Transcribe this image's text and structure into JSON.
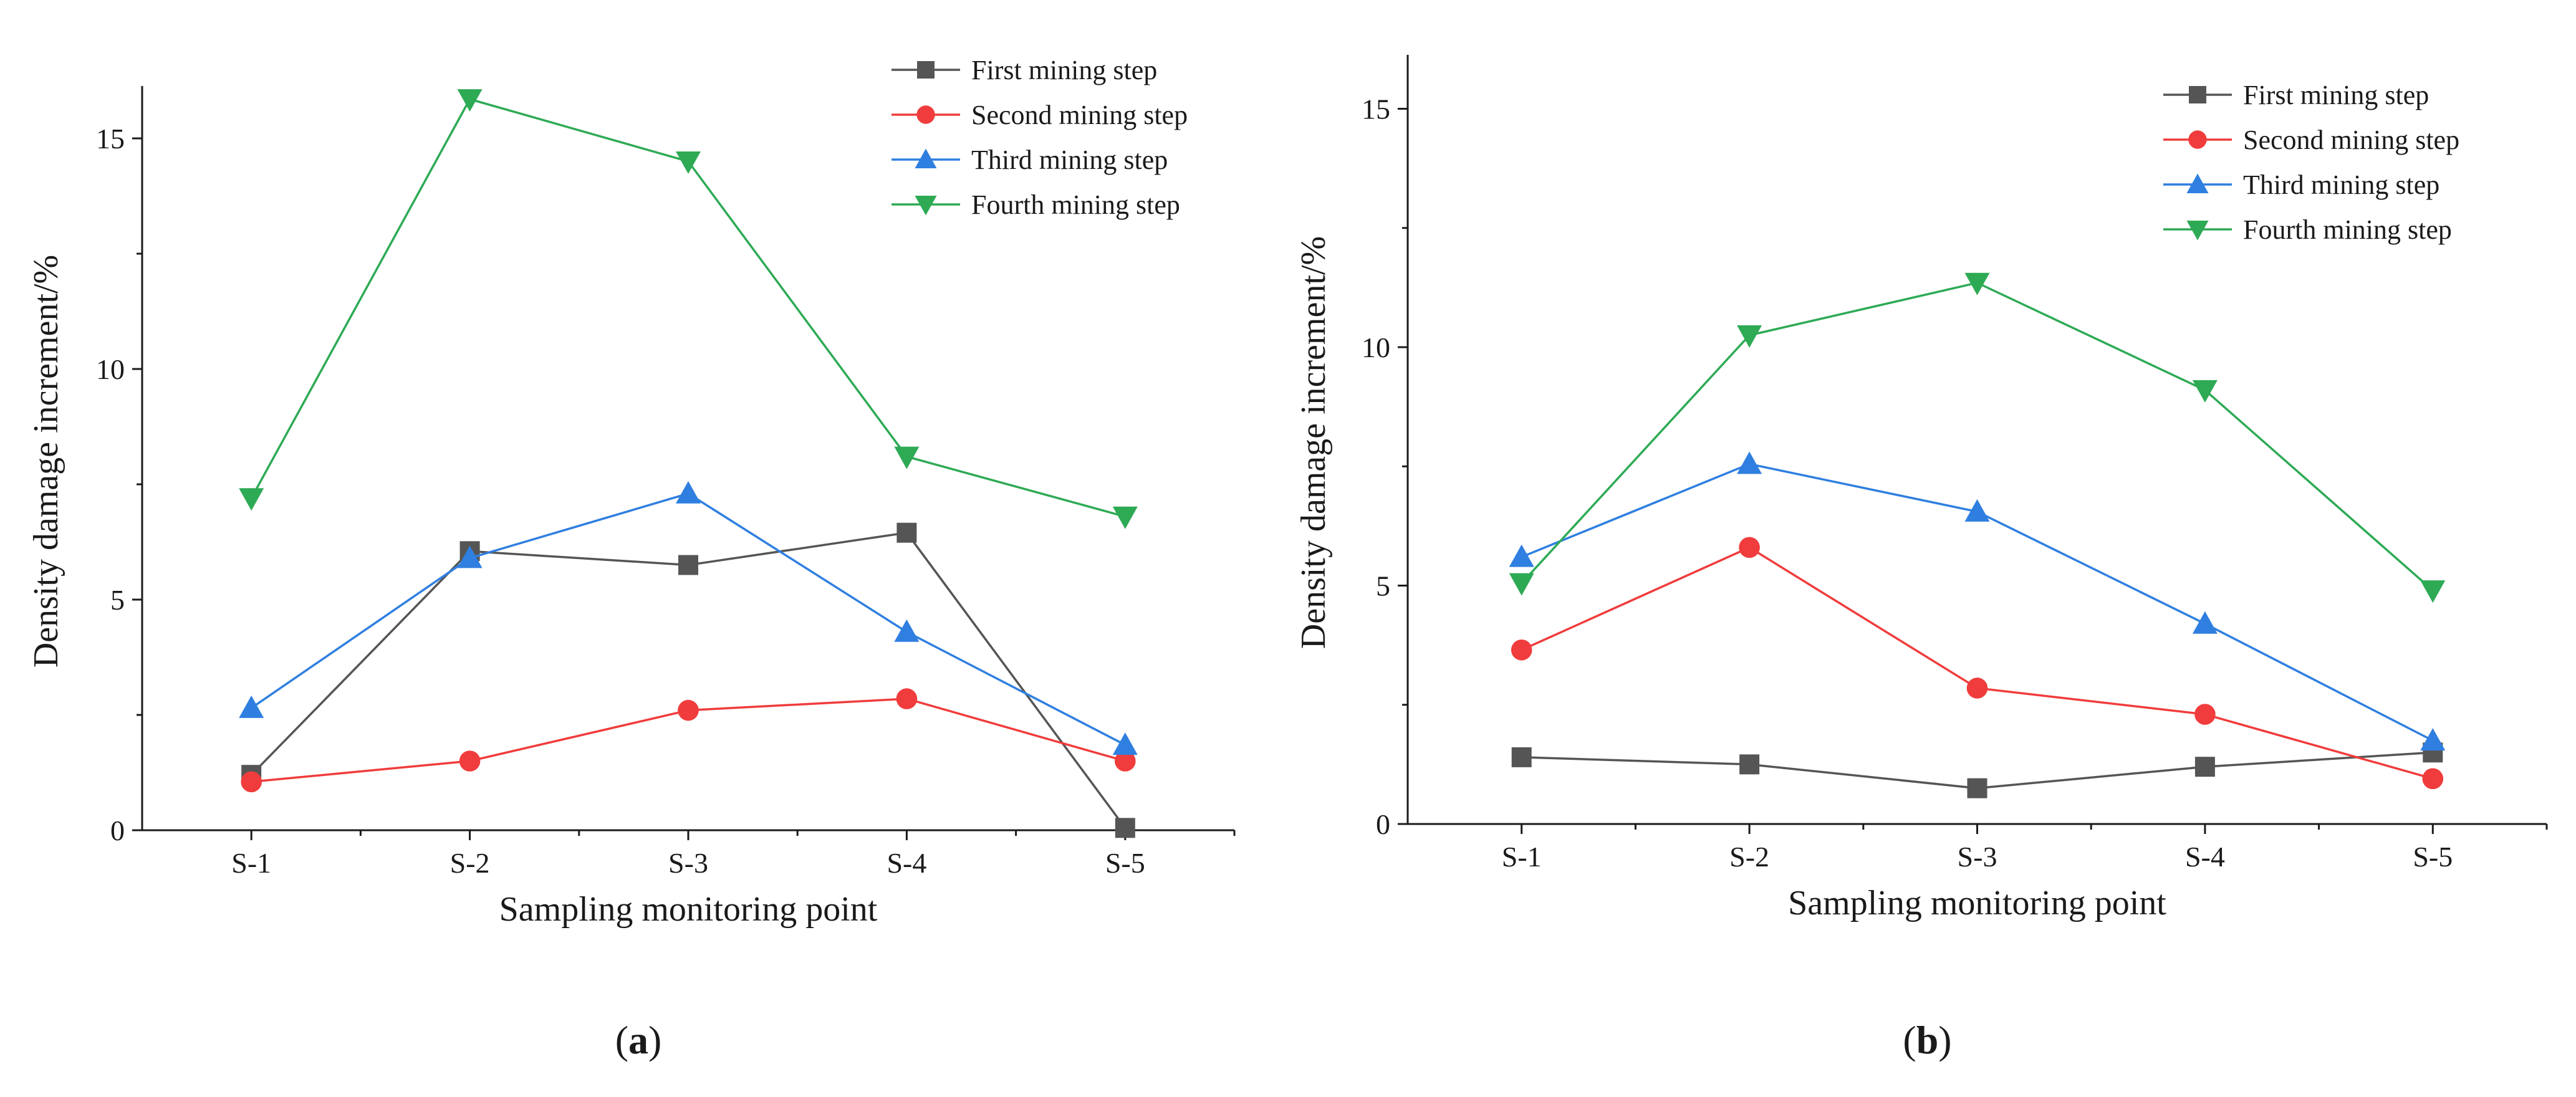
{
  "chart_data": [
    {
      "type": "line",
      "panel_label": "a",
      "xlabel": "Sampling monitoring point",
      "ylabel": "Density damage increment/%",
      "categories": [
        "S-1",
        "S-2",
        "S-3",
        "S-4",
        "S-5"
      ],
      "ylim": [
        0,
        16
      ],
      "yticks": [
        0,
        5,
        10,
        15
      ],
      "legend_position": "top-right",
      "series": [
        {
          "name": "First mining step",
          "color": "#555555",
          "marker": "square",
          "values": [
            1.2,
            6.05,
            5.75,
            6.45,
            0.05
          ]
        },
        {
          "name": "Second mining step",
          "color": "#f03c3c",
          "marker": "circle",
          "values": [
            1.05,
            1.5,
            2.6,
            2.85,
            1.5
          ]
        },
        {
          "name": "Third mining step",
          "color": "#2f7fe0",
          "marker": "triangle-up",
          "values": [
            2.65,
            5.9,
            7.3,
            4.3,
            1.85
          ]
        },
        {
          "name": "Fourth mining step",
          "color": "#2eaa55",
          "marker": "triangle-down",
          "values": [
            7.2,
            15.85,
            14.5,
            8.1,
            6.8
          ]
        }
      ]
    },
    {
      "type": "line",
      "panel_label": "b",
      "xlabel": "Sampling monitoring point",
      "ylabel": "Density damage increment/%",
      "categories": [
        "S-1",
        "S-2",
        "S-3",
        "S-4",
        "S-5"
      ],
      "ylim": [
        0,
        16
      ],
      "yticks": [
        0,
        5,
        10,
        15
      ],
      "legend_position": "top-right",
      "series": [
        {
          "name": "First mining step",
          "color": "#555555",
          "marker": "square",
          "values": [
            1.4,
            1.25,
            0.75,
            1.2,
            1.5
          ]
        },
        {
          "name": "Second mining step",
          "color": "#f03c3c",
          "marker": "circle",
          "values": [
            3.65,
            5.8,
            2.85,
            2.3,
            0.95
          ]
        },
        {
          "name": "Third mining step",
          "color": "#2f7fe0",
          "marker": "triangle-up",
          "values": [
            5.6,
            7.55,
            6.55,
            4.2,
            1.75
          ]
        },
        {
          "name": "Fourth mining step",
          "color": "#2eaa55",
          "marker": "triangle-down",
          "values": [
            5.05,
            10.25,
            11.35,
            9.1,
            4.9
          ]
        }
      ]
    }
  ]
}
